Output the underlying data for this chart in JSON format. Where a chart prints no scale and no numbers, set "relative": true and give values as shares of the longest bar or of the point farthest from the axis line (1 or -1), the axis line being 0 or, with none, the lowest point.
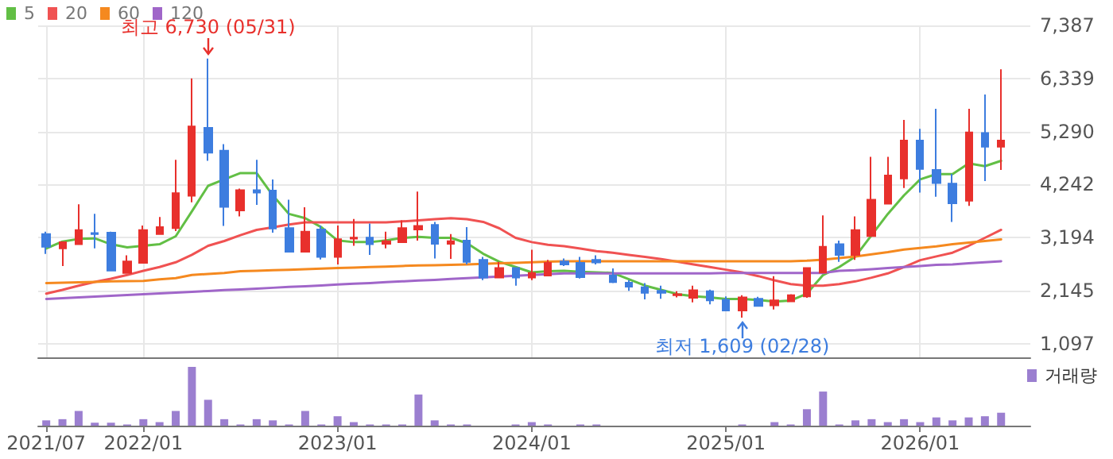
{
  "chart_data": [
    {
      "type": "candlestick",
      "x": [
        "2021-07",
        "2021-08",
        "2021-09",
        "2021-10",
        "2021-11",
        "2021-12",
        "2022-01",
        "2022-02",
        "2022-03",
        "2022-04",
        "2022-05",
        "2022-06",
        "2022-07",
        "2022-08",
        "2022-09",
        "2022-10",
        "2022-11",
        "2022-12",
        "2023-01",
        "2023-02",
        "2023-03",
        "2023-04",
        "2023-05",
        "2023-06",
        "2023-07",
        "2023-08",
        "2023-09",
        "2023-10",
        "2023-11",
        "2023-12",
        "2024-01",
        "2024-02",
        "2024-03",
        "2024-04",
        "2024-05",
        "2024-06",
        "2024-07",
        "2024-08",
        "2024-09",
        "2024-10",
        "2024-11",
        "2024-12",
        "2025-01",
        "2025-02",
        "2025-03",
        "2025-04",
        "2025-05",
        "2025-06",
        "2025-07",
        "2025-08",
        "2025-09",
        "2025-10",
        "2025-11",
        "2025-12",
        "2026-01",
        "2026-02",
        "2026-03",
        "2026-04",
        "2026-05",
        "2026-06"
      ],
      "xlim": [
        "2021-06-16",
        "2026-07-26"
      ],
      "xticks": [
        {
          "value": "2021-07",
          "label": null
        },
        {
          "value": "2022-01",
          "label": null
        },
        {
          "value": "2023-01",
          "label": null
        },
        {
          "value": "2024-01",
          "label": null
        },
        {
          "value": "2025-01",
          "label": null
        },
        {
          "value": "2026-01",
          "label": null
        }
      ],
      "tick_labels": "y",
      "ylim": [
        823,
        7387
      ],
      "yticks": [
        {
          "value": 1097,
          "label": "1,097"
        },
        {
          "value": 2145,
          "label": "2,145"
        },
        {
          "value": 3194,
          "label": "3,194"
        },
        {
          "value": 4242,
          "label": "4,242"
        },
        {
          "value": 5290,
          "label": "5,290"
        },
        {
          "value": 6339,
          "label": "6,339"
        },
        {
          "value": 7387,
          "label": "7,387"
        }
      ],
      "grid": true,
      "legend": "top left",
      "marker": "none",
      "ohlc": [
        [
          3260,
          3310,
          2870,
          3010
        ],
        [
          2980,
          3100,
          2630,
          3100
        ],
        [
          3060,
          3850,
          3060,
          3340
        ],
        [
          3280,
          3660,
          2980,
          3260
        ],
        [
          3290,
          3310,
          2540,
          2540
        ],
        [
          2490,
          2840,
          2490,
          2720
        ],
        [
          2690,
          3430,
          2690,
          3340
        ],
        [
          3260,
          3600,
          3260,
          3400
        ],
        [
          3380,
          4730,
          3320,
          4070
        ],
        [
          4020,
          6340,
          3890,
          5390
        ],
        [
          5360,
          6730,
          4710,
          4870
        ],
        [
          4910,
          5040,
          3420,
          3800
        ],
        [
          3730,
          4160,
          3610,
          4130
        ],
        [
          4130,
          4730,
          3840,
          4080
        ],
        [
          4120,
          4340,
          3290,
          3370
        ],
        [
          3380,
          3940,
          2910,
          2910
        ],
        [
          2910,
          3790,
          2910,
          3310
        ],
        [
          3350,
          3430,
          2760,
          2810
        ],
        [
          2810,
          3430,
          2660,
          3160
        ],
        [
          3170,
          3560,
          3030,
          3190
        ],
        [
          3190,
          3470,
          2850,
          3060
        ],
        [
          3070,
          3310,
          2980,
          3120
        ],
        [
          3100,
          3530,
          3100,
          3380
        ],
        [
          3350,
          4100,
          3130,
          3420
        ],
        [
          3440,
          3500,
          2780,
          3070
        ],
        [
          3070,
          3260,
          2770,
          3120
        ],
        [
          3130,
          3400,
          2660,
          2710
        ],
        [
          2750,
          2810,
          2350,
          2400
        ],
        [
          2400,
          2710,
          2400,
          2590
        ],
        [
          2590,
          2590,
          2240,
          2400
        ],
        [
          2400,
          2950,
          2350,
          2490
        ],
        [
          2440,
          2750,
          2440,
          2690
        ],
        [
          2720,
          2780,
          2630,
          2660
        ],
        [
          2690,
          2810,
          2380,
          2410
        ],
        [
          2750,
          2840,
          2660,
          2700
        ],
        [
          2440,
          2580,
          2290,
          2310
        ],
        [
          2300,
          2350,
          2140,
          2220
        ],
        [
          2210,
          2290,
          1970,
          2100
        ],
        [
          2140,
          2240,
          1980,
          2100
        ],
        [
          2050,
          2130,
          2010,
          2070
        ],
        [
          2000,
          2240,
          1910,
          2150
        ],
        [
          2130,
          2160,
          1870,
          1950
        ],
        [
          1960,
          2030,
          1740,
          1750
        ],
        [
          1750,
          2050,
          1609,
          2010
        ],
        [
          1980,
          2020,
          1840,
          1840
        ],
        [
          1850,
          2430,
          1770,
          1950
        ],
        [
          1930,
          2070,
          1930,
          2050
        ],
        [
          2030,
          2590,
          2000,
          2590
        ],
        [
          2500,
          3630,
          2500,
          3010
        ],
        [
          3060,
          3130,
          2710,
          2850
        ],
        [
          2850,
          3610,
          2750,
          3340
        ],
        [
          3220,
          4790,
          3220,
          3940
        ],
        [
          3860,
          4790,
          3860,
          4420
        ],
        [
          4360,
          5520,
          4170,
          5110
        ],
        [
          5110,
          5340,
          4080,
          4550
        ],
        [
          4530,
          5740,
          4000,
          4270
        ],
        [
          4260,
          4450,
          3500,
          3870
        ],
        [
          3920,
          5740,
          3820,
          5270
        ],
        [
          5260,
          6020,
          4310,
          4990
        ],
        [
          4990,
          6520,
          4530,
          5110
        ]
      ],
      "colors": [
        "#3d7ddf",
        "#e8302c",
        "#e8302c",
        "#3d7ddf",
        "#3d7ddf",
        "#e8302c",
        "#e8302c",
        "#e8302c",
        "#e8302c",
        "#e8302c",
        "#3d7ddf",
        "#3d7ddf",
        "#e8302c",
        "#3d7ddf",
        "#3d7ddf",
        "#3d7ddf",
        "#e8302c",
        "#3d7ddf",
        "#e8302c",
        "#e8302c",
        "#3d7ddf",
        "#e8302c",
        "#e8302c",
        "#e8302c",
        "#3d7ddf",
        "#e8302c",
        "#3d7ddf",
        "#3d7ddf",
        "#e8302c",
        "#3d7ddf",
        "#e8302c",
        "#e8302c",
        "#3d7ddf",
        "#3d7ddf",
        "#3d7ddf",
        "#3d7ddf",
        "#3d7ddf",
        "#3d7ddf",
        "#3d7ddf",
        "#e8302c",
        "#e8302c",
        "#3d7ddf",
        "#3d7ddf",
        "#e8302c",
        "#3d7ddf",
        "#e8302c",
        "#e8302c",
        "#e8302c",
        "#e8302c",
        "#3d7ddf",
        "#e8302c",
        "#e8302c",
        "#e8302c",
        "#e8302c",
        "#3d7ddf",
        "#3d7ddf",
        "#3d7ddf",
        "#e8302c",
        "#3d7ddf",
        "#e8302c"
      ],
      "series": [
        {
          "name": "5",
          "type": "line",
          "color": "#62bf45",
          "values": [
            2976,
            3113,
            3165,
            3176,
            3060,
            2997,
            3029,
            3060,
            3218,
            3711,
            4215,
            4342,
            4468,
            4468,
            4026,
            3659,
            3575,
            3396,
            3134,
            3102,
            3102,
            3134,
            3186,
            3207,
            3186,
            3186,
            3081,
            2871,
            2714,
            2609,
            2504,
            2525,
            2535,
            2514,
            2504,
            2493,
            2367,
            2241,
            2157,
            2073,
            2031,
            2010,
            1978,
            1978,
            1957,
            1926,
            1947,
            2083,
            2451,
            2609,
            2819,
            3239,
            3659,
            4026,
            4342,
            4447,
            4447,
            4657,
            4604,
            4709
          ]
        },
        {
          "name": "20",
          "type": "line",
          "color": "#f05252",
          "values": [
            2083,
            2157,
            2241,
            2314,
            2377,
            2451,
            2535,
            2609,
            2703,
            2850,
            3029,
            3123,
            3239,
            3344,
            3396,
            3449,
            3491,
            3491,
            3491,
            3491,
            3491,
            3491,
            3512,
            3533,
            3554,
            3575,
            3554,
            3501,
            3375,
            3186,
            3102,
            3050,
            3020,
            2976,
            2924,
            2892,
            2850,
            2808,
            2766,
            2714,
            2661,
            2609,
            2556,
            2504,
            2430,
            2346,
            2272,
            2241,
            2241,
            2272,
            2325,
            2399,
            2483,
            2609,
            2745,
            2819,
            2892,
            3029,
            3186,
            3344
          ]
        },
        {
          "name": "60",
          "type": "line",
          "color": "#f5891f",
          "values": [
            2293,
            2300,
            2307,
            2314,
            2325,
            2330,
            2335,
            2367,
            2388,
            2451,
            2472,
            2493,
            2525,
            2535,
            2546,
            2556,
            2567,
            2577,
            2588,
            2598,
            2609,
            2619,
            2630,
            2640,
            2646,
            2651,
            2661,
            2672,
            2682,
            2693,
            2703,
            2714,
            2724,
            2724,
            2724,
            2724,
            2724,
            2724,
            2724,
            2724,
            2724,
            2724,
            2724,
            2724,
            2724,
            2724,
            2724,
            2735,
            2756,
            2787,
            2819,
            2861,
            2903,
            2955,
            2987,
            3018,
            3060,
            3092,
            3123,
            3155
          ]
        },
        {
          "name": "120",
          "type": "line",
          "color": "#a066c9",
          "values": [
            1978,
            1994,
            2010,
            2026,
            2041,
            2057,
            2073,
            2088,
            2104,
            2120,
            2136,
            2152,
            2167,
            2183,
            2199,
            2215,
            2230,
            2246,
            2262,
            2278,
            2293,
            2309,
            2325,
            2341,
            2356,
            2372,
            2388,
            2404,
            2419,
            2435,
            2451,
            2467,
            2483,
            2483,
            2483,
            2483,
            2483,
            2483,
            2483,
            2483,
            2483,
            2483,
            2493,
            2493,
            2493,
            2493,
            2493,
            2493,
            2493,
            2535,
            2546,
            2567,
            2588,
            2609,
            2630,
            2651,
            2661,
            2682,
            2703,
            2724
          ]
        }
      ],
      "annotations": [
        {
          "text": "최고 6,730 (05/31)",
          "x": "2022-05",
          "y": 6730
        },
        {
          "text": "최저 1,609 (02/28)",
          "x": "2025-02",
          "y": 1609
        }
      ]
    },
    {
      "type": "bar",
      "relative": true,
      "legend": "top right",
      "tick_labels": "x",
      "xlim": [
        "2021-06-16",
        "2026-07-26"
      ],
      "x": [
        "2021-07",
        "2021-08",
        "2021-09",
        "2021-10",
        "2021-11",
        "2021-12",
        "2022-01",
        "2022-02",
        "2022-03",
        "2022-04",
        "2022-05",
        "2022-06",
        "2022-07",
        "2022-08",
        "2022-09",
        "2022-10",
        "2022-11",
        "2022-12",
        "2023-01",
        "2023-02",
        "2023-03",
        "2023-04",
        "2023-05",
        "2023-06",
        "2023-07",
        "2023-08",
        "2023-09",
        "2023-10",
        "2023-11",
        "2023-12",
        "2024-01",
        "2024-02",
        "2024-03",
        "2024-04",
        "2024-05",
        "2024-06",
        "2024-07",
        "2024-08",
        "2024-09",
        "2024-10",
        "2024-11",
        "2024-12",
        "2025-01",
        "2025-02",
        "2025-03",
        "2025-04",
        "2025-05",
        "2025-06",
        "2025-07",
        "2025-08",
        "2025-09",
        "2025-10",
        "2025-11",
        "2025-12",
        "2026-01",
        "2026-02",
        "2026-03",
        "2026-04",
        "2026-05",
        "2026-06"
      ],
      "xticks": [
        {
          "value": "2021-07",
          "label": "2021/07"
        },
        {
          "value": "2022-01",
          "label": "2022/01"
        },
        {
          "value": "2023-01",
          "label": "2023/01"
        },
        {
          "value": "2024-01",
          "label": "2024/01"
        },
        {
          "value": "2025-01",
          "label": "2025/01"
        },
        {
          "value": "2026-01",
          "label": "2026/01"
        }
      ],
      "series": [
        {
          "name": "거래량",
          "color": "#9b7fd0",
          "values": [
            0.09,
            0.11,
            0.25,
            0.05,
            0.05,
            0.02,
            0.11,
            0.06,
            0.25,
            1,
            0.44,
            0.11,
            0.02,
            0.11,
            0.09,
            0.02,
            0.25,
            0.02,
            0.16,
            0.06,
            0.02,
            0.02,
            0.02,
            0.53,
            0.09,
            0.02,
            0.02,
            0,
            0,
            0.02,
            0.06,
            0.02,
            0,
            0.02,
            0.02,
            0,
            0,
            0,
            0,
            0,
            0,
            0,
            0,
            0.02,
            0,
            0.06,
            0.02,
            0.28,
            0.58,
            0.02,
            0.09,
            0.11,
            0.06,
            0.11,
            0.06,
            0.14,
            0.09,
            0.14,
            0.16,
            0.22
          ]
        }
      ]
    }
  ]
}
